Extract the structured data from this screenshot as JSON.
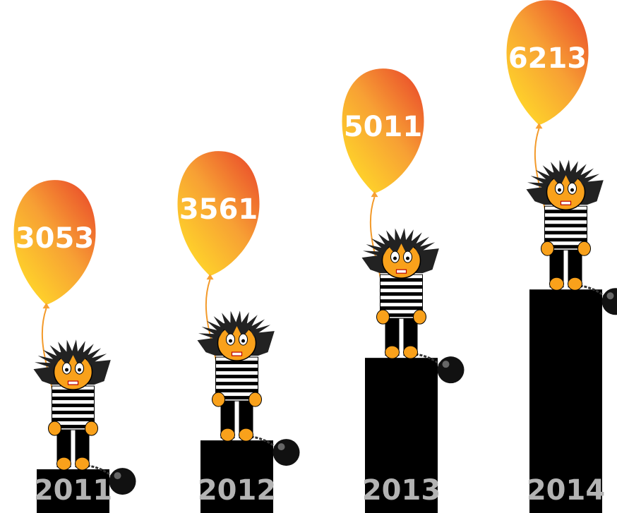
{
  "chart_data": {
    "type": "bar",
    "categories": [
      "2011",
      "2012",
      "2013",
      "2014"
    ],
    "values": [
      3053,
      3561,
      5011,
      6213
    ],
    "color": "#000000",
    "ylim": [
      2285,
      11300
    ]
  }
}
